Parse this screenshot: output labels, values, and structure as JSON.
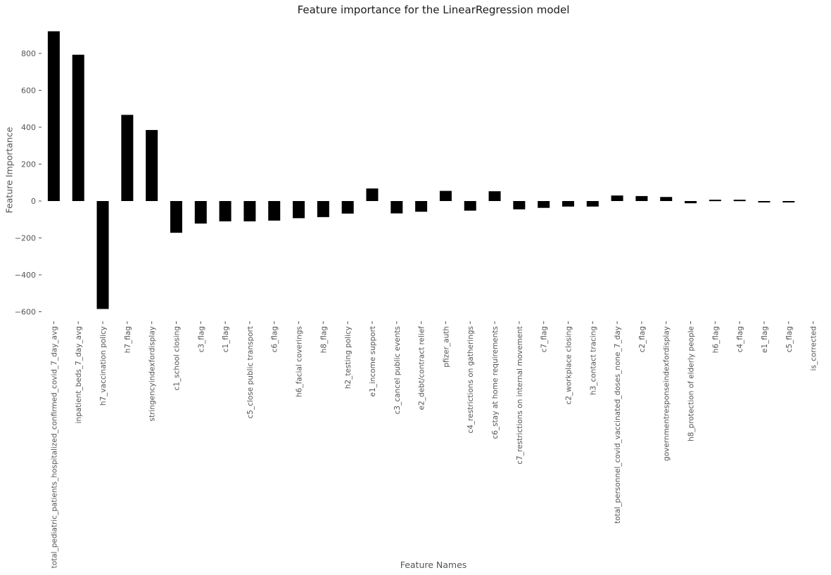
{
  "chart_data": {
    "type": "bar",
    "title": "Feature importance for the LinearRegression model",
    "xlabel": "Feature Names",
    "ylabel": "Feature Importance",
    "ylim": [
      -620,
      920
    ],
    "yticks": [
      -600,
      -400,
      -200,
      0,
      200,
      400,
      600,
      800
    ],
    "ytick_labels": [
      "−600",
      "−400",
      "−200",
      "0",
      "200",
      "400",
      "600",
      "800"
    ],
    "grid": false,
    "bar_color": "#000000",
    "categories": [
      "total_pediatric_patients_hospitalized_confirmed_covid_7_day_avg",
      "inpatient_beds_7_day_avg",
      "h7_vaccination policy",
      "h7_flag",
      "stringencyindexfordisplay",
      "c1_school closing",
      "c3_flag",
      "c1_flag",
      "c5_close public transport",
      "c6_flag",
      "h6_facial coverings",
      "h8_flag",
      "h2_testing policy",
      "e1_income support",
      "c3_cancel public events",
      "e2_debt/contract relief",
      "pfizer_auth",
      "c4_restrictions on gatherings",
      "c6_stay at home requirements",
      "c7_restrictions on internal movement",
      "c7_flag",
      "c2_workplace closing",
      "h3_contact tracing",
      "total_personnel_covid_vaccinated_doses_none_7_day",
      "c2_flag",
      "governmentresponseindexfordisplay",
      "h8_protection of elderly people",
      "h6_flag",
      "c4_flag",
      "e1_flag",
      "c5_flag",
      "is_corrected"
    ],
    "values": [
      920,
      793,
      -585,
      467,
      385,
      -172,
      -122,
      -110,
      -110,
      -106,
      -93,
      -87,
      -68,
      68,
      -67,
      -58,
      55,
      -52,
      53,
      -45,
      -37,
      -30,
      -30,
      30,
      27,
      22,
      -12,
      7,
      7,
      -7,
      -7,
      0
    ]
  }
}
